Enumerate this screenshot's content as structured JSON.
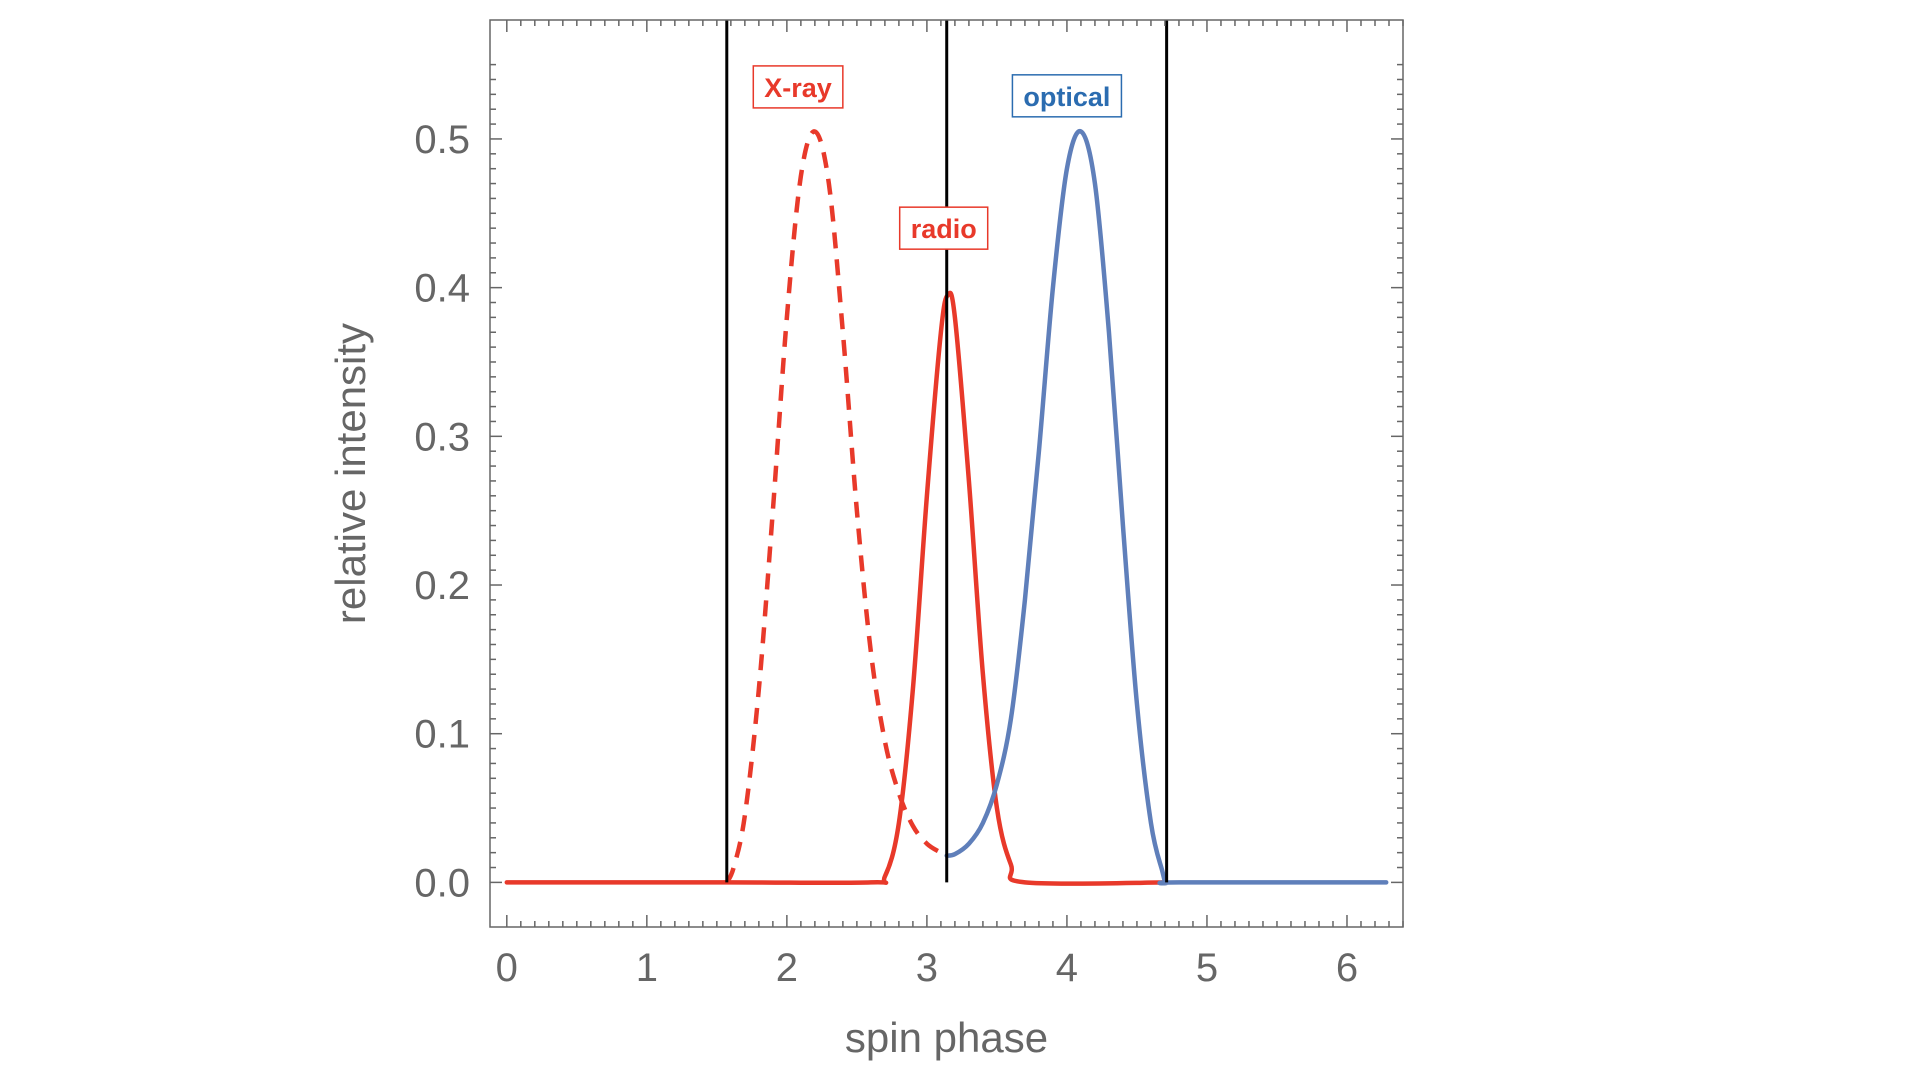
{
  "chart_data": {
    "type": "line",
    "xlabel": "spin phase",
    "ylabel": "relative intensity",
    "xlim": [
      -0.12,
      6.4
    ],
    "ylim": [
      -0.03,
      0.58
    ],
    "x_ticks": [
      0,
      1,
      2,
      3,
      4,
      5,
      6
    ],
    "x_tick_labels": [
      "0",
      "1",
      "2",
      "3",
      "4",
      "5",
      "6"
    ],
    "y_ticks": [
      0.0,
      0.1,
      0.2,
      0.3,
      0.4,
      0.5
    ],
    "y_tick_labels": [
      "0.0",
      "0.1",
      "0.2",
      "0.3",
      "0.4",
      "0.5"
    ],
    "grid": false,
    "frame": "box with minor ticks on all sides",
    "vertical_lines": [
      1.571,
      3.1416,
      4.712
    ],
    "colors": {
      "red": "#e8392a",
      "blue": "#5f7fba",
      "black": "#000000",
      "axis": "#666666"
    },
    "series": [
      {
        "name": "X-ray",
        "style": "dashed",
        "color": "#e8392a",
        "x": [
          1.571,
          1.62,
          1.7,
          1.8,
          1.9,
          2.0,
          2.1,
          2.2,
          2.3,
          2.4,
          2.5,
          2.6,
          2.7,
          2.8,
          2.9,
          3.0,
          3.1,
          3.1416
        ],
        "y": [
          0.0,
          0.01,
          0.045,
          0.13,
          0.25,
          0.38,
          0.475,
          0.505,
          0.47,
          0.37,
          0.25,
          0.155,
          0.095,
          0.06,
          0.038,
          0.026,
          0.02,
          0.018
        ]
      },
      {
        "name": "radio",
        "style": "solid",
        "color": "#e8392a",
        "x": [
          0.0,
          1.571,
          2.6,
          2.7,
          2.8,
          2.9,
          3.0,
          3.1,
          3.15,
          3.2,
          3.3,
          3.4,
          3.5,
          3.6,
          3.7,
          4.712
        ],
        "y": [
          0.0,
          0.0,
          0.0,
          0.004,
          0.04,
          0.13,
          0.26,
          0.37,
          0.395,
          0.38,
          0.27,
          0.14,
          0.05,
          0.012,
          0.0,
          0.0
        ]
      },
      {
        "name": "optical",
        "style": "solid",
        "color": "#5f7fba",
        "x": [
          3.1416,
          3.2,
          3.3,
          3.4,
          3.5,
          3.6,
          3.7,
          3.8,
          3.9,
          4.0,
          4.1,
          4.2,
          4.3,
          4.4,
          4.5,
          4.6,
          4.68,
          4.712,
          4.8,
          6.28
        ],
        "y": [
          0.018,
          0.019,
          0.026,
          0.04,
          0.066,
          0.11,
          0.19,
          0.29,
          0.4,
          0.48,
          0.505,
          0.47,
          0.37,
          0.24,
          0.12,
          0.04,
          0.008,
          0.0,
          0.0,
          0.0
        ]
      }
    ],
    "annotations": [
      {
        "text": "X-ray",
        "x": 2.08,
        "y": 0.535,
        "color": "#e8392a"
      },
      {
        "text": "radio",
        "x": 3.12,
        "y": 0.44,
        "color": "#e8392a"
      },
      {
        "text": "optical",
        "x": 4.0,
        "y": 0.529,
        "color": "#2b6cb0"
      }
    ]
  }
}
